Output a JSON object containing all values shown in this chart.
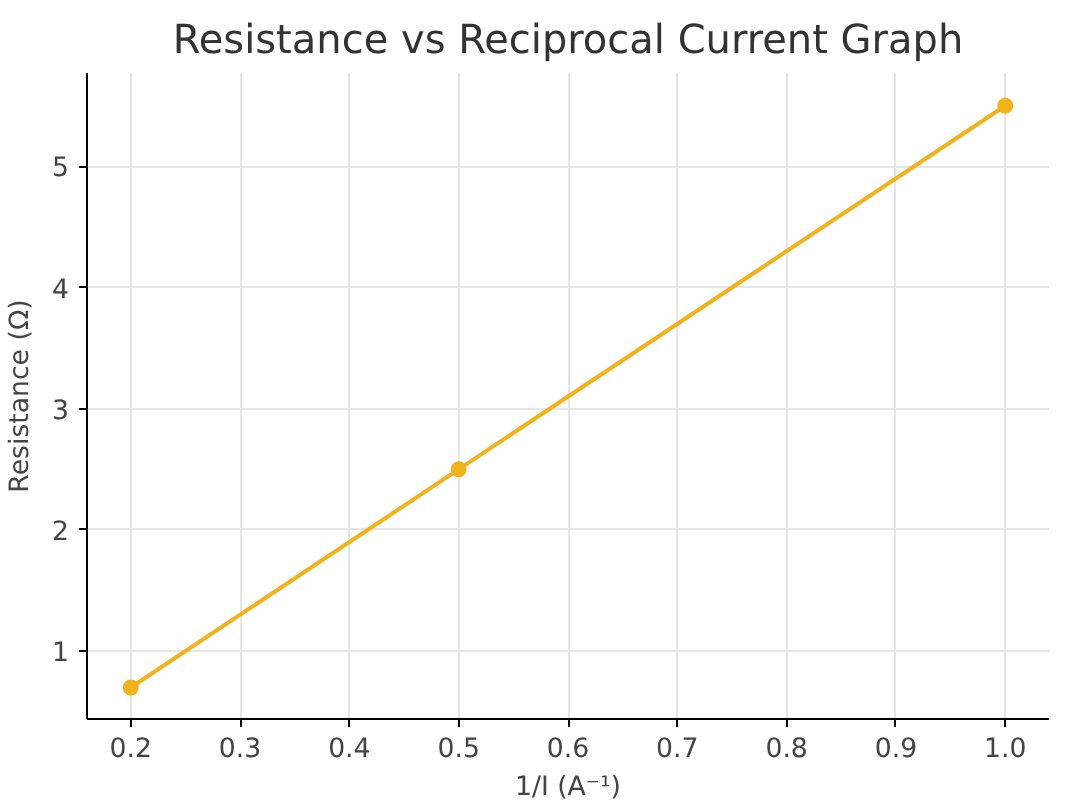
{
  "chart_data": {
    "type": "line",
    "title": "Resistance vs Reciprocal Current Graph",
    "xlabel": "1/I (A⁻¹)",
    "ylabel": "Resistance (Ω)",
    "x": [
      0.2,
      0.5,
      1.0
    ],
    "series": [
      {
        "color": "#f2b21b",
        "values": [
          0.7,
          2.5,
          5.5
        ]
      }
    ],
    "xlim": [
      0.16,
      1.04
    ],
    "xticks": [
      {
        "value": 0.2,
        "label": "0.2"
      },
      {
        "value": 0.3,
        "label": "0.3"
      },
      {
        "value": 0.4,
        "label": "0.4"
      },
      {
        "value": 0.5,
        "label": "0.5"
      },
      {
        "value": 0.6,
        "label": "0.6"
      },
      {
        "value": 0.7,
        "label": "0.7"
      },
      {
        "value": 0.8,
        "label": "0.8"
      },
      {
        "value": 0.9,
        "label": "0.9"
      },
      {
        "value": 1.0,
        "label": "1.0"
      }
    ],
    "ylim": [
      0.44,
      5.77
    ],
    "yticks": [
      1,
      2,
      3,
      4,
      5
    ],
    "grid": true,
    "marker": "circle",
    "line_style": "solid"
  }
}
